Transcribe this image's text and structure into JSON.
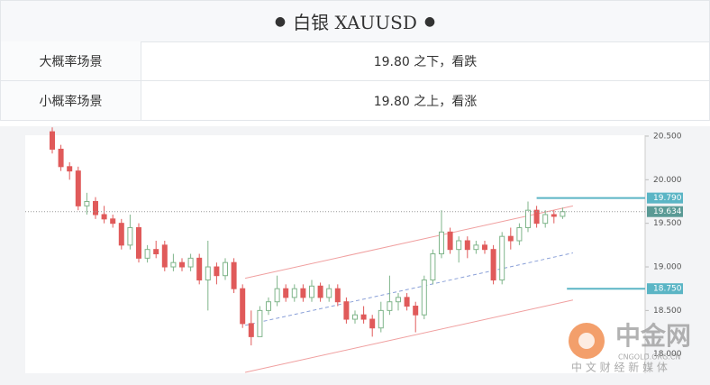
{
  "header": {
    "title": "白银 XAUUSD"
  },
  "table": {
    "rows": [
      [
        "大概率场景",
        "19.80 之下，看跌"
      ],
      [
        "小概率场景",
        "19.80 之上，看涨"
      ]
    ]
  },
  "chart_data": {
    "type": "candlestick",
    "open": [
      20.55,
      20.35,
      20.15,
      20.1,
      19.7,
      19.75,
      19.6,
      19.55,
      19.5,
      19.25,
      19.45,
      19.1,
      19.2,
      19.25,
      19.0,
      19.05,
      19.0,
      19.1,
      18.85,
      19.0,
      18.9,
      19.05,
      18.75,
      18.35,
      18.2,
      18.5,
      18.6,
      18.75,
      18.65,
      18.75,
      18.65,
      18.78,
      18.65,
      18.75,
      18.6,
      18.4,
      18.45,
      18.4,
      18.3,
      18.5,
      18.6,
      18.65,
      18.55,
      18.45,
      18.85,
      19.15,
      19.4,
      19.2,
      19.3,
      19.2,
      19.25,
      19.2,
      18.85,
      19.35,
      19.3,
      19.45,
      19.65,
      19.5,
      19.6,
      19.58
    ],
    "high": [
      20.6,
      20.4,
      20.2,
      20.15,
      19.85,
      19.8,
      19.7,
      19.6,
      19.55,
      19.6,
      19.5,
      19.25,
      19.3,
      19.3,
      19.15,
      19.1,
      19.15,
      19.15,
      19.3,
      19.05,
      19.1,
      19.1,
      18.8,
      18.5,
      18.55,
      18.65,
      18.9,
      18.8,
      18.8,
      18.8,
      18.85,
      18.82,
      18.8,
      18.8,
      18.65,
      18.5,
      18.55,
      18.45,
      18.6,
      18.9,
      18.7,
      18.7,
      18.6,
      18.9,
      19.2,
      19.65,
      19.45,
      19.35,
      19.35,
      19.3,
      19.3,
      19.25,
      19.4,
      19.45,
      19.5,
      19.75,
      19.7,
      19.65,
      19.65,
      19.68
    ],
    "low": [
      20.3,
      20.1,
      20.0,
      19.65,
      19.6,
      19.55,
      19.5,
      19.45,
      19.2,
      19.2,
      19.05,
      19.05,
      19.1,
      18.95,
      18.95,
      18.95,
      18.95,
      18.8,
      18.5,
      18.8,
      18.85,
      18.7,
      18.3,
      18.1,
      18.2,
      18.45,
      18.55,
      18.6,
      18.6,
      18.6,
      18.6,
      18.6,
      18.6,
      18.55,
      18.35,
      18.35,
      18.35,
      18.2,
      18.25,
      18.45,
      18.5,
      18.5,
      18.25,
      18.4,
      18.8,
      19.1,
      19.15,
      19.05,
      19.1,
      19.15,
      19.15,
      18.8,
      18.8,
      19.2,
      19.25,
      19.4,
      19.45,
      19.45,
      19.5,
      19.55
    ],
    "close": [
      20.35,
      20.15,
      20.1,
      19.7,
      19.75,
      19.6,
      19.55,
      19.5,
      19.25,
      19.45,
      19.1,
      19.2,
      19.15,
      19.0,
      19.05,
      19.0,
      19.1,
      18.85,
      19.0,
      18.9,
      19.05,
      18.75,
      18.35,
      18.2,
      18.5,
      18.6,
      18.75,
      18.65,
      18.75,
      18.65,
      18.78,
      18.65,
      18.75,
      18.6,
      18.4,
      18.45,
      18.4,
      18.3,
      18.5,
      18.6,
      18.65,
      18.55,
      18.45,
      18.85,
      19.15,
      19.4,
      19.2,
      19.3,
      19.2,
      19.25,
      19.2,
      18.85,
      19.35,
      19.3,
      19.45,
      19.65,
      19.5,
      19.6,
      19.58,
      19.634
    ],
    "up_color": "#7fb58a",
    "down_color": "#e05a5a",
    "ylim": [
      17.78,
      20.51
    ],
    "yticks": [
      {
        "value": 18,
        "label": "18.000"
      },
      {
        "value": 18.5,
        "label": "18.500"
      },
      {
        "value": 19,
        "label": "19.000"
      },
      {
        "value": 19.5,
        "label": "19.500"
      },
      {
        "value": 20,
        "label": "20.000"
      },
      {
        "value": 20.5,
        "label": "20.500"
      }
    ],
    "channel": {
      "start_index": 22.3,
      "end_index": 60.2,
      "upper": [
        18.87,
        19.7
      ],
      "middle": [
        18.33,
        19.16
      ],
      "lower": [
        17.79,
        18.62
      ],
      "color": "#f0a0a0",
      "middle_color": "#8aa0d8"
    },
    "levels": [
      {
        "value": 19.79,
        "label": "19.790",
        "from_index": 56,
        "color": "#5bb5c5"
      },
      {
        "value": 18.75,
        "label": "18.750",
        "from_index": 59.5,
        "color": "#5bb5c5"
      }
    ],
    "current": {
      "value": 19.634,
      "label": "19.634",
      "color": "#5a9a95"
    },
    "watermark": {
      "name": "中金网",
      "site": "CNGOLD.ORG.CN",
      "slogan": "中 文 财 经 新 媒 体"
    }
  }
}
